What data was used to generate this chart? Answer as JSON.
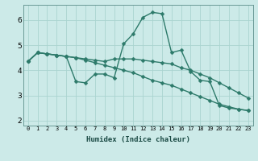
{
  "xlabel": "Humidex (Indice chaleur)",
  "background_color": "#cceae8",
  "grid_color": "#aad4d0",
  "line_color": "#2d7a6a",
  "ylim": [
    1.8,
    6.6
  ],
  "xlim": [
    -0.5,
    23.5
  ],
  "yticks": [
    2,
    3,
    4,
    5,
    6
  ],
  "xtick_labels": [
    "0",
    "1",
    "2",
    "3",
    "4",
    "5",
    "6",
    "7",
    "8",
    "9",
    "10",
    "11",
    "12",
    "13",
    "14",
    "15",
    "16",
    "17",
    "18",
    "19",
    "20",
    "21",
    "22",
    "23"
  ],
  "series1": [
    4.35,
    4.7,
    4.65,
    4.6,
    4.55,
    3.55,
    3.5,
    3.85,
    3.85,
    3.7,
    5.05,
    5.45,
    6.1,
    6.3,
    6.25,
    4.7,
    4.8,
    3.95,
    3.6,
    3.55,
    2.6,
    2.5,
    2.45,
    2.4
  ],
  "series2": [
    4.35,
    4.7,
    4.65,
    4.6,
    4.55,
    4.5,
    4.45,
    4.4,
    4.35,
    4.45,
    4.45,
    4.45,
    4.4,
    4.35,
    4.3,
    4.25,
    4.1,
    4.0,
    3.85,
    3.7,
    3.5,
    3.3,
    3.1,
    2.9
  ],
  "series3": [
    4.35,
    4.7,
    4.65,
    4.6,
    4.55,
    4.5,
    4.4,
    4.3,
    4.2,
    4.1,
    4.0,
    3.9,
    3.75,
    3.6,
    3.5,
    3.4,
    3.25,
    3.1,
    2.95,
    2.8,
    2.65,
    2.55,
    2.45,
    2.4
  ],
  "marker_size": 2.5,
  "linewidth": 1.0,
  "xlabel_fontsize": 6.5,
  "xlabel_fontweight": "bold",
  "xlabel_color": "#1a4a44",
  "ytick_fontsize": 6.5,
  "xtick_fontsize": 5.0,
  "figsize": [
    3.2,
    2.0
  ],
  "dpi": 100
}
